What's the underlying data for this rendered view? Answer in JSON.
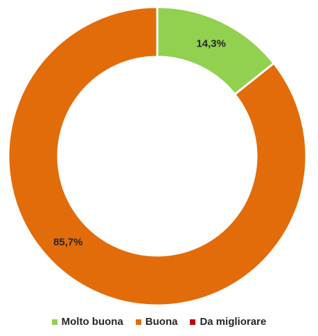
{
  "chart_data": {
    "type": "pie",
    "variant": "donut",
    "categories": [
      "Molto buona",
      "Buona",
      "Da migliorare"
    ],
    "values": [
      14.3,
      85.7,
      0
    ],
    "data_labels": [
      "14,3%",
      "85,7%",
      ""
    ],
    "colors": [
      "#92D050",
      "#E36C0A",
      "#C00000"
    ],
    "legend_position": "bottom",
    "title": ""
  }
}
